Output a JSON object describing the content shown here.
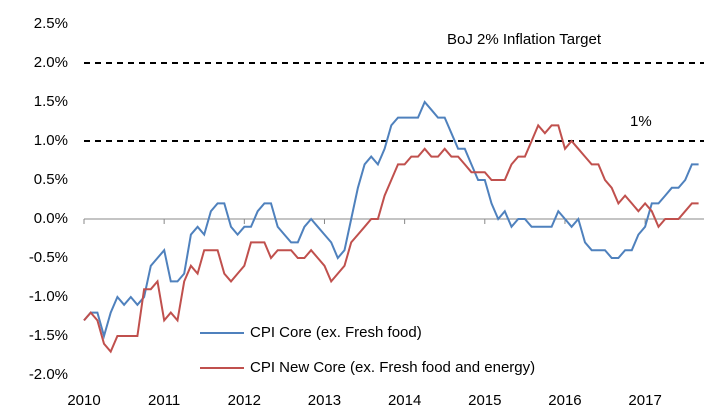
{
  "chart_data": {
    "type": "line",
    "categories": [
      "2010",
      null,
      null,
      null,
      null,
      null,
      null,
      null,
      null,
      null,
      null,
      null,
      "2011",
      null,
      null,
      null,
      null,
      null,
      null,
      null,
      null,
      null,
      null,
      null,
      "2012",
      null,
      null,
      null,
      null,
      null,
      null,
      null,
      null,
      null,
      null,
      null,
      "2013",
      null,
      null,
      null,
      null,
      null,
      null,
      null,
      null,
      null,
      null,
      null,
      "2014",
      null,
      null,
      null,
      null,
      null,
      null,
      null,
      null,
      null,
      null,
      null,
      "2015",
      null,
      null,
      null,
      null,
      null,
      null,
      null,
      null,
      null,
      null,
      null,
      "2016",
      null,
      null,
      null,
      null,
      null,
      null,
      null,
      null,
      null,
      null,
      null,
      "2017",
      null,
      null,
      null,
      null,
      null,
      null,
      null,
      null
    ],
    "series": [
      {
        "name": "CPI Core (ex. Fresh food)",
        "color": "#4f81bd",
        "values": [
          -1.3,
          -1.2,
          -1.2,
          -1.5,
          -1.2,
          -1.0,
          -1.1,
          -1.0,
          -1.1,
          -1.0,
          -0.6,
          -0.5,
          -0.4,
          -0.8,
          -0.8,
          -0.7,
          -0.2,
          -0.1,
          -0.2,
          0.1,
          0.2,
          0.2,
          -0.1,
          -0.2,
          -0.1,
          -0.1,
          0.1,
          0.2,
          0.2,
          -0.1,
          -0.2,
          -0.3,
          -0.3,
          -0.1,
          0.0,
          -0.1,
          -0.2,
          -0.3,
          -0.5,
          -0.4,
          0.0,
          0.4,
          0.7,
          0.8,
          0.7,
          0.9,
          1.2,
          1.3,
          1.3,
          1.3,
          1.3,
          1.5,
          1.4,
          1.3,
          1.3,
          1.1,
          0.9,
          0.9,
          0.7,
          0.5,
          0.5,
          0.2,
          0.0,
          0.1,
          -0.1,
          0.0,
          0.0,
          -0.1,
          -0.1,
          -0.1,
          -0.1,
          0.1,
          0.0,
          -0.1,
          0.0,
          -0.3,
          -0.4,
          -0.4,
          -0.4,
          -0.5,
          -0.5,
          -0.4,
          -0.4,
          -0.2,
          -0.1,
          0.2,
          0.2,
          0.3,
          0.4,
          0.4,
          0.5,
          0.7,
          0.7
        ]
      },
      {
        "name": "CPI New Core (ex. Fresh food and energy)",
        "color": "#c0504d",
        "values": [
          -1.3,
          -1.2,
          -1.3,
          -1.6,
          -1.7,
          -1.5,
          -1.5,
          -1.5,
          -1.5,
          -0.9,
          -0.9,
          -0.8,
          -1.3,
          -1.2,
          -1.3,
          -0.8,
          -0.6,
          -0.7,
          -0.4,
          -0.4,
          -0.4,
          -0.7,
          -0.8,
          -0.7,
          -0.6,
          -0.3,
          -0.3,
          -0.3,
          -0.5,
          -0.4,
          -0.4,
          -0.4,
          -0.5,
          -0.5,
          -0.4,
          -0.5,
          -0.6,
          -0.8,
          -0.7,
          -0.6,
          -0.3,
          -0.2,
          -0.1,
          0.0,
          0.0,
          0.3,
          0.5,
          0.7,
          0.7,
          0.8,
          0.8,
          0.9,
          0.8,
          0.8,
          0.9,
          0.8,
          0.8,
          0.7,
          0.6,
          0.6,
          0.6,
          0.5,
          0.5,
          0.5,
          0.7,
          0.8,
          0.8,
          1.0,
          1.2,
          1.1,
          1.2,
          1.2,
          0.9,
          1.0,
          0.9,
          0.8,
          0.7,
          0.7,
          0.5,
          0.4,
          0.2,
          0.3,
          0.2,
          0.1,
          0.2,
          0.1,
          -0.1,
          0.0,
          0.0,
          0.0,
          0.1,
          0.2,
          0.2
        ]
      }
    ],
    "ylim": [
      -2,
      2.5
    ],
    "yticks": [
      {
        "value": -2,
        "label": "-2.0%"
      },
      {
        "value": -1.5,
        "label": "-1.5%"
      },
      {
        "value": -1,
        "label": "-1.0%"
      },
      {
        "value": -0.5,
        "label": "-0.5%"
      },
      {
        "value": 0,
        "label": "0.0%"
      },
      {
        "value": 0.5,
        "label": "0.5%"
      },
      {
        "value": 1,
        "label": "1.0%"
      },
      {
        "value": 1.5,
        "label": "1.5%"
      },
      {
        "value": 2,
        "label": "2.0%"
      },
      {
        "value": 2.5,
        "label": "2.5%"
      }
    ],
    "reference_lines": [
      {
        "value": 2,
        "label": "BoJ 2% Inflation Target"
      },
      {
        "value": 1,
        "label": "1%"
      }
    ],
    "grid": false,
    "legend": "lower center"
  }
}
